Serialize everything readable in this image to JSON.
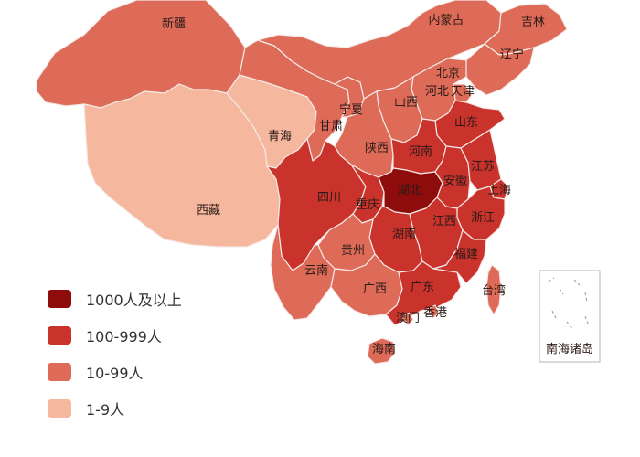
{
  "colors": {
    "level_1000_plus": "#8f0c0c",
    "level_100_999": "#c9332c",
    "level_10_99": "#de6b58",
    "level_1_9": "#f5b89e",
    "border": "#f4e9e6"
  },
  "legend": [
    {
      "label": "1000人及以上",
      "color_key": "level_1000_plus"
    },
    {
      "label": "100-999人",
      "color_key": "level_100_999"
    },
    {
      "label": "10-99人",
      "color_key": "level_10_99"
    },
    {
      "label": "1-9人",
      "color_key": "level_1_9"
    }
  ],
  "provinces": [
    {
      "name": "新疆",
      "level": "level_10_99"
    },
    {
      "name": "西藏",
      "level": "level_1_9"
    },
    {
      "name": "青海",
      "level": "level_1_9"
    },
    {
      "name": "甘肃",
      "level": "level_10_99"
    },
    {
      "name": "宁夏",
      "level": "level_10_99"
    },
    {
      "name": "内蒙古",
      "level": "level_10_99"
    },
    {
      "name": "吉林",
      "level": "level_10_99"
    },
    {
      "name": "辽宁",
      "level": "level_10_99"
    },
    {
      "name": "北京",
      "level": "level_100_999"
    },
    {
      "name": "天津",
      "level": "level_10_99"
    },
    {
      "name": "河北",
      "level": "level_10_99"
    },
    {
      "name": "山西",
      "level": "level_10_99"
    },
    {
      "name": "山东",
      "level": "level_100_999"
    },
    {
      "name": "陕西",
      "level": "level_10_99"
    },
    {
      "name": "河南",
      "level": "level_100_999"
    },
    {
      "name": "四川",
      "level": "level_100_999"
    },
    {
      "name": "重庆",
      "level": "level_100_999"
    },
    {
      "name": "湖北",
      "level": "level_1000_plus"
    },
    {
      "name": "安徽",
      "level": "level_100_999"
    },
    {
      "name": "江苏",
      "level": "level_100_999"
    },
    {
      "name": "上海",
      "level": "level_100_999"
    },
    {
      "name": "浙江",
      "level": "level_100_999"
    },
    {
      "name": "江西",
      "level": "level_100_999"
    },
    {
      "name": "湖南",
      "level": "level_100_999"
    },
    {
      "name": "贵州",
      "level": "level_10_99"
    },
    {
      "name": "云南",
      "level": "level_10_99"
    },
    {
      "name": "广西",
      "level": "level_10_99"
    },
    {
      "name": "广东",
      "level": "level_100_999"
    },
    {
      "name": "福建",
      "level": "level_100_999"
    },
    {
      "name": "台湾",
      "level": "level_10_99"
    },
    {
      "name": "澳门",
      "level": "level_10_99"
    },
    {
      "name": "香港",
      "level": "level_10_99"
    },
    {
      "name": "海南",
      "level": "level_10_99"
    }
  ],
  "inset": {
    "label": "南海诸岛"
  }
}
